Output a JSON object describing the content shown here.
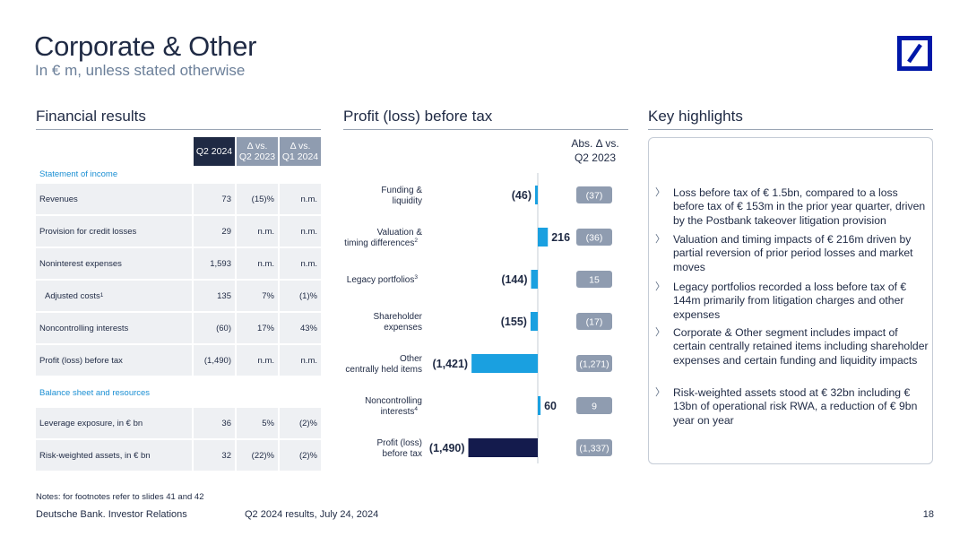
{
  "header": {
    "title": "Corporate & Other",
    "subtitle": "In € m, unless stated otherwise"
  },
  "sections": {
    "financial_results": "Financial results",
    "profit_before_tax": "Profit (loss) before tax",
    "key_highlights": "Key highlights"
  },
  "table": {
    "columns": [
      "Q2 2024",
      "Δ vs.\nQ2 2023",
      "Δ vs.\nQ1 2024"
    ],
    "groups": [
      "Statement of income",
      "Balance sheet and resources"
    ],
    "rows": [
      {
        "label": "Revenues",
        "sup": "",
        "q": "73",
        "d1": "(15)%",
        "d2": "n.m."
      },
      {
        "label": "Provision for credit losses",
        "sup": "",
        "q": "29",
        "d1": "n.m.",
        "d2": "n.m."
      },
      {
        "label": "Noninterest expenses",
        "sup": "",
        "q": "1,593",
        "d1": "n.m.",
        "d2": "n.m."
      },
      {
        "label": "Adjusted costs",
        "sup": "1",
        "q": "135",
        "d1": "7%",
        "d2": "(1)%"
      },
      {
        "label": "Noncontrolling interests",
        "sup": "",
        "q": "(60)",
        "d1": "17%",
        "d2": "43%"
      },
      {
        "label": "Profit (loss) before tax",
        "sup": "",
        "q": "(1,490)",
        "d1": "n.m.",
        "d2": "n.m."
      },
      {
        "label": "Leverage exposure, in € bn",
        "sup": "",
        "q": "36",
        "d1": "5%",
        "d2": "(2)%"
      },
      {
        "label": "Risk-weighted assets, in € bn",
        "sup": "",
        "q": "32",
        "d1": "(22)%",
        "d2": "(2)%"
      }
    ]
  },
  "chart_data": {
    "type": "bar",
    "orientation": "horizontal",
    "categories": [
      "Funding & liquidity",
      "Valuation & timing differences",
      "Legacy portfolios",
      "Shareholder expenses",
      "Other centrally held items",
      "Noncontrolling interests",
      "Profit (loss) before tax"
    ],
    "category_lines": [
      [
        "Funding &",
        "liquidity"
      ],
      [
        "Valuation &",
        "timing differences"
      ],
      [
        "Legacy portfolios"
      ],
      [
        "Shareholder",
        "expenses"
      ],
      [
        "Other",
        "centrally held items"
      ],
      [
        "Noncontrolling",
        "interests"
      ],
      [
        "Profit (loss)",
        "before tax"
      ]
    ],
    "category_sups": [
      "",
      "2",
      "3",
      "",
      "",
      "4",
      ""
    ],
    "values": [
      -46,
      216,
      -144,
      -155,
      -1421,
      60,
      -1490
    ],
    "value_labels": [
      "(46)",
      "216",
      "(144)",
      "(155)",
      "(1,421)",
      "60",
      "(1,490)"
    ],
    "abs_delta_header": "Abs. Δ vs.\nQ2 2023",
    "abs_delta": [
      "(37)",
      "(36)",
      "15",
      "(17)",
      "(1,271)",
      "9",
      "(1,337)"
    ],
    "bar_color": "#1aa0e0",
    "total_color": "#141b4d",
    "badge_color": "#8f9cb0"
  },
  "highlights": [
    "Loss before tax of € 1.5bn, compared to a loss before tax of € 153m in the prior year quarter, driven by the Postbank takeover litigation provision",
    "Valuation and timing impacts of € 216m driven by partial reversion of prior period losses and market moves",
    "Legacy portfolios recorded a loss before tax of € 144m primarily from litigation charges and other expenses",
    "Corporate & Other segment includes impact of certain centrally retained items including shareholder expenses and certain funding and liquidity impacts",
    "Risk-weighted assets stood at € 32bn including € 13bn of operational risk RWA, a reduction of € 9bn year on year"
  ],
  "bullet_glyph": "〉",
  "notes": "Notes: for footnotes refer to slides 41 and 42",
  "footer": {
    "company": "Deutsche Bank. Investor Relations",
    "event": "Q2 2024 results, July 24, 2024",
    "page": "18"
  },
  "colors": {
    "brand_blue": "#0018a8",
    "navy": "#1f2a44",
    "group_label": "#1b8fd3",
    "row_bg": "#eef0f3"
  }
}
